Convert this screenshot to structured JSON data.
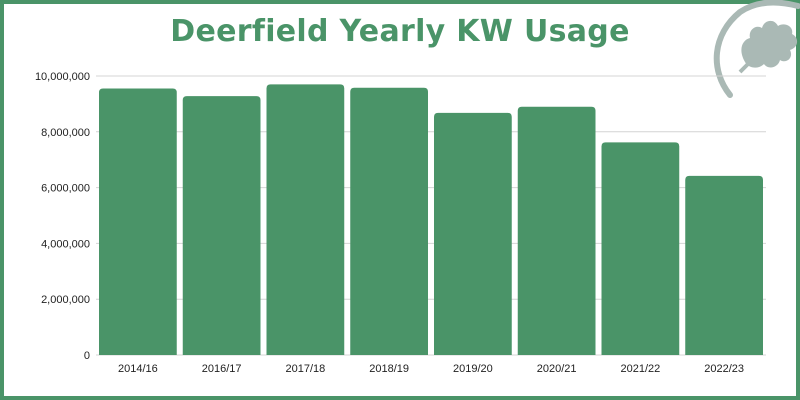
{
  "colors": {
    "bar": "#4a9468",
    "border": "#4a9468",
    "grid": "#d4d4d4",
    "logo": "#aab9b5"
  },
  "logo": {
    "icon": "oak-leaf-icon"
  },
  "chart_data": {
    "type": "bar",
    "title": "Deerfield Yearly KW Usage",
    "xlabel": "",
    "ylabel": "",
    "categories": [
      "2014/16",
      "2016/17",
      "2017/18",
      "2018/19",
      "2019/20",
      "2020/21",
      "2021/22",
      "2022/23"
    ],
    "values": [
      9550000,
      9280000,
      9700000,
      9580000,
      8680000,
      8900000,
      7620000,
      6420000
    ],
    "ylim": [
      0,
      10000000
    ],
    "yticks": [
      0,
      2000000,
      4000000,
      6000000,
      8000000,
      10000000
    ],
    "ytick_labels": [
      "0",
      "2,000,000",
      "4,000,000",
      "6,000,000",
      "8,000,000",
      "10,000,000"
    ],
    "grid": true,
    "legend": "none"
  }
}
